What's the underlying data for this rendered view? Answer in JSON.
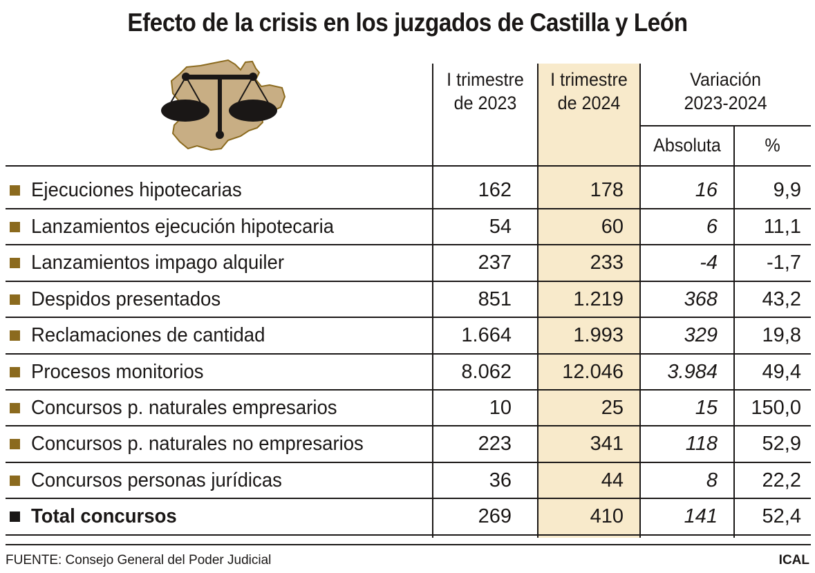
{
  "title": "Efecto de la crisis en los juzgados de Castilla y León",
  "colors": {
    "highlight": "#f8eacb",
    "bullet": "#8b6a1e",
    "map_fill": "#c8ae84",
    "map_outline": "#8b6a1e"
  },
  "icons": [
    "scales-of-justice-on-castilla-y-leon-map-icon"
  ],
  "headers": {
    "col1": [
      "I trimestre",
      "de 2023"
    ],
    "col2": [
      "I trimestre",
      "de 2024"
    ],
    "variation": [
      "Variación",
      "2023-2024"
    ],
    "abs": "Absoluta",
    "pct": "%"
  },
  "chart_data": {
    "type": "table",
    "title": "Efecto de la crisis en los juzgados de Castilla y León",
    "columns": [
      "I trimestre de 2023",
      "I trimestre de 2024",
      "Variación 2023-2024 Absoluta",
      "Variación 2023-2024 %"
    ],
    "rows": [
      {
        "label": "Ejecuciones hipotecarias",
        "v2023": "162",
        "v2024": "178",
        "abs": "16",
        "pct": "9,9"
      },
      {
        "label": "Lanzamientos ejecución hipotecaria",
        "v2023": "54",
        "v2024": "60",
        "abs": "6",
        "pct": "11,1"
      },
      {
        "label": "Lanzamientos impago alquiler",
        "v2023": "237",
        "v2024": "233",
        "abs": "-4",
        "pct": "-1,7"
      },
      {
        "label": "Despidos presentados",
        "v2023": "851",
        "v2024": "1.219",
        "abs": "368",
        "pct": "43,2"
      },
      {
        "label": "Reclamaciones de cantidad",
        "v2023": "1.664",
        "v2024": "1.993",
        "abs": "329",
        "pct": "19,8"
      },
      {
        "label": "Procesos monitorios",
        "v2023": "8.062",
        "v2024": "12.046",
        "abs": "3.984",
        "pct": "49,4"
      },
      {
        "label": "Concursos p. naturales empresarios",
        "v2023": "10",
        "v2024": "25",
        "abs": "15",
        "pct": "150,0"
      },
      {
        "label": "Concursos p. naturales no empresarios",
        "v2023": "223",
        "v2024": "341",
        "abs": "118",
        "pct": "52,9"
      },
      {
        "label": "Concursos personas jurídicas",
        "v2023": "36",
        "v2024": "44",
        "abs": "8",
        "pct": "22,2"
      },
      {
        "label": "Total concursos",
        "v2023": "269",
        "v2024": "410",
        "abs": "141",
        "pct": "52,4",
        "bold": true
      }
    ]
  },
  "footer": {
    "source": "FUENTE: Consejo General del Poder Judicial",
    "brand": "ICAL"
  }
}
